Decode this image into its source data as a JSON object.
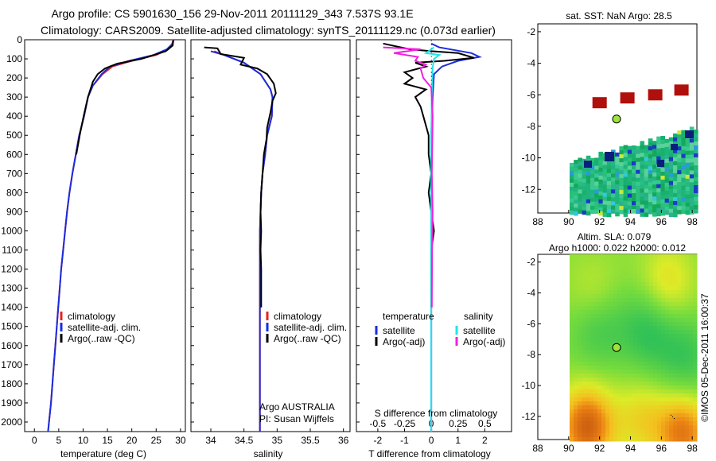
{
  "title_line1": "Argo profile: CS 5901630_156 29-Nov-2011 20111129_343 7.537S 93.1E",
  "title_line2": "Climatology: CARS2009. Satellite-adjusted climatology: synTS_20111129.nc (0.073d earlier)",
  "colors": {
    "climatology": "#e8231f",
    "satellite": "#1a2de0",
    "argo": "#000000",
    "sal_satellite": "#20e4ea",
    "sal_argo": "#ee22dd",
    "sst_box": "#b0100c",
    "argo_marker": "#9ee33a"
  },
  "chart_data": [
    {
      "type": "line",
      "id": "temperature",
      "xlabel": "temperature (deg C)",
      "ylabel": "",
      "xlim": [
        -2,
        31
      ],
      "ylim": [
        2050,
        0
      ],
      "xticks": [
        0,
        5,
        10,
        15,
        20,
        25,
        30
      ],
      "yticks": [
        0,
        100,
        200,
        300,
        400,
        500,
        600,
        700,
        800,
        900,
        1000,
        1100,
        1200,
        1300,
        1400,
        1500,
        1600,
        1700,
        1800,
        1900,
        2000
      ],
      "legend": [
        "climatology",
        "satellite-adj. clim.",
        "Argo(..raw -QC)"
      ],
      "series": [
        {
          "name": "climatology",
          "color_key": "climatology",
          "points": [
            [
              28.5,
              0
            ],
            [
              28.3,
              20
            ],
            [
              27.5,
              50
            ],
            [
              25,
              80
            ],
            [
              20,
              110
            ],
            [
              16,
              140
            ],
            [
              14,
              180
            ],
            [
              12,
              240
            ],
            [
              11,
              300
            ],
            [
              10.2,
              400
            ],
            [
              9.2,
              500
            ],
            [
              8.5,
              600
            ],
            [
              7.8,
              700
            ],
            [
              7.2,
              800
            ],
            [
              6.7,
              900
            ],
            [
              6.3,
              1000
            ],
            [
              5.9,
              1100
            ],
            [
              5.5,
              1200
            ],
            [
              5.2,
              1300
            ],
            [
              4.9,
              1400
            ],
            [
              4.6,
              1500
            ],
            [
              4.3,
              1600
            ],
            [
              4.0,
              1700
            ],
            [
              3.7,
              1800
            ],
            [
              3.4,
              1900
            ],
            [
              3.0,
              2000
            ],
            [
              2.8,
              2050
            ]
          ]
        },
        {
          "name": "satellite-adj. clim.",
          "color_key": "satellite",
          "points": [
            [
              28.6,
              0
            ],
            [
              28.4,
              20
            ],
            [
              27.2,
              50
            ],
            [
              24.5,
              80
            ],
            [
              19.5,
              110
            ],
            [
              15.5,
              140
            ],
            [
              13.8,
              180
            ],
            [
              12,
              240
            ],
            [
              11,
              300
            ],
            [
              10.2,
              400
            ],
            [
              9.2,
              500
            ],
            [
              8.5,
              600
            ],
            [
              7.8,
              700
            ],
            [
              7.2,
              800
            ],
            [
              6.7,
              900
            ],
            [
              6.3,
              1000
            ],
            [
              5.9,
              1100
            ],
            [
              5.5,
              1200
            ],
            [
              5.2,
              1300
            ],
            [
              4.9,
              1400
            ],
            [
              4.6,
              1500
            ],
            [
              4.3,
              1600
            ],
            [
              4.0,
              1700
            ],
            [
              3.7,
              1800
            ],
            [
              3.4,
              1900
            ],
            [
              3.0,
              2000
            ],
            [
              2.8,
              2050
            ]
          ]
        },
        {
          "name": "Argo(..raw -QC)",
          "color_key": "argo",
          "points": [
            [
              28.5,
              5
            ],
            [
              28.4,
              30
            ],
            [
              27,
              60
            ],
            [
              22,
              100
            ],
            [
              17,
              125
            ],
            [
              14.5,
              150
            ],
            [
              13,
              180
            ],
            [
              12,
              220
            ],
            [
              11,
              300
            ],
            [
              10.1,
              400
            ],
            [
              9.3,
              500
            ],
            [
              8.6,
              600
            ]
          ]
        }
      ]
    },
    {
      "type": "line",
      "id": "salinity",
      "xlabel": "salinity",
      "xlim": [
        33.7,
        36.1
      ],
      "ylim": [
        2050,
        0
      ],
      "xticks": [
        34,
        34.5,
        35,
        35.5,
        36
      ],
      "xticklabels": [
        "34",
        "34.5",
        "35",
        "35.5",
        "36"
      ],
      "legend": [
        "climatology",
        "satellite-adj. clim.",
        "Argo(..raw -QC)"
      ],
      "annotation_lines": [
        "Argo AUSTRALIA",
        "PI: Susan Wijffels"
      ],
      "series": [
        {
          "name": "climatology",
          "color_key": "climatology",
          "points": [
            [
              34.05,
              60
            ],
            [
              34.2,
              80
            ],
            [
              34.5,
              120
            ],
            [
              34.75,
              180
            ],
            [
              34.9,
              260
            ],
            [
              34.93,
              300
            ],
            [
              34.92,
              400
            ],
            [
              34.85,
              500
            ],
            [
              34.82,
              600
            ],
            [
              34.78,
              700
            ],
            [
              34.76,
              800
            ],
            [
              34.75,
              900
            ],
            [
              34.74,
              1000
            ],
            [
              34.74,
              1100
            ],
            [
              34.74,
              1200
            ],
            [
              34.74,
              1300
            ],
            [
              34.74,
              1400
            ],
            [
              34.74,
              1500
            ],
            [
              34.74,
              1600
            ],
            [
              34.74,
              1700
            ],
            [
              34.74,
              1800
            ],
            [
              34.74,
              1900
            ],
            [
              34.74,
              2000
            ],
            [
              34.74,
              2050
            ]
          ]
        },
        {
          "name": "satellite-adj. clim.",
          "color_key": "satellite",
          "points": [
            [
              34.0,
              60
            ],
            [
              34.2,
              80
            ],
            [
              34.5,
              120
            ],
            [
              34.75,
              180
            ],
            [
              34.9,
              260
            ],
            [
              34.93,
              300
            ],
            [
              34.92,
              400
            ],
            [
              34.85,
              500
            ],
            [
              34.82,
              600
            ],
            [
              34.78,
              700
            ],
            [
              34.76,
              800
            ],
            [
              34.75,
              900
            ],
            [
              34.74,
              1000
            ],
            [
              34.74,
              1100
            ],
            [
              34.74,
              1200
            ],
            [
              34.74,
              1300
            ],
            [
              34.74,
              1400
            ],
            [
              34.74,
              1500
            ],
            [
              34.74,
              1600
            ],
            [
              34.74,
              1700
            ],
            [
              34.74,
              1800
            ],
            [
              34.74,
              1900
            ],
            [
              34.74,
              2000
            ],
            [
              34.74,
              2050
            ]
          ]
        },
        {
          "name": "Argo(..raw -QC)",
          "color_key": "argo",
          "points": [
            [
              33.9,
              40
            ],
            [
              34.1,
              45
            ],
            [
              34.15,
              75
            ],
            [
              34.5,
              95
            ],
            [
              34.45,
              130
            ],
            [
              34.7,
              150
            ],
            [
              34.85,
              180
            ],
            [
              34.95,
              230
            ],
            [
              34.98,
              280
            ],
            [
              34.93,
              320
            ],
            [
              34.9,
              380
            ],
            [
              34.85,
              460
            ],
            [
              34.84,
              520
            ],
            [
              34.8,
              600
            ],
            [
              34.78,
              700
            ],
            [
              34.76,
              800
            ],
            [
              34.75,
              900
            ],
            [
              34.76,
              1000
            ],
            [
              34.75,
              1100
            ],
            [
              34.76,
              1200
            ],
            [
              34.76,
              1300
            ],
            [
              34.76,
              1400
            ]
          ]
        }
      ]
    },
    {
      "type": "line",
      "id": "difference",
      "xlabel": "T difference from climatology",
      "x2label": "S difference from climatology",
      "xlim": [
        -2.8,
        3
      ],
      "ylim": [
        2050,
        0
      ],
      "xticks": [
        -2,
        -1,
        0,
        1,
        2
      ],
      "x2ticks": [
        -0.5,
        -0.25,
        0,
        0.25,
        0.5
      ],
      "legend_left_title": "temperature",
      "legend_right_title": "salinity",
      "legend_left": [
        "satellite",
        "Argo(-adj)"
      ],
      "legend_right": [
        "satellite",
        "Argo(-adj)"
      ],
      "series": [
        {
          "name": "T satellite",
          "color_key": "satellite",
          "points": [
            [
              0,
              20
            ],
            [
              0.3,
              40
            ],
            [
              1.5,
              70
            ],
            [
              1.8,
              90
            ],
            [
              1,
              110
            ],
            [
              0.4,
              140
            ],
            [
              0.1,
              180
            ],
            [
              0.05,
              300
            ],
            [
              0,
              500
            ],
            [
              0,
              800
            ],
            [
              0,
              1200
            ],
            [
              0,
              1600
            ],
            [
              0,
              2050
            ]
          ]
        },
        {
          "name": "T Argo(-adj)",
          "color_key": "argo",
          "points": [
            [
              -1.8,
              20
            ],
            [
              -0.8,
              50
            ],
            [
              0,
              60
            ],
            [
              1,
              70
            ],
            [
              1.6,
              95
            ],
            [
              0.5,
              110
            ],
            [
              -0.6,
              120
            ],
            [
              -0.2,
              140
            ],
            [
              -1,
              170
            ],
            [
              -0.7,
              200
            ],
            [
              -1,
              230
            ],
            [
              -0.2,
              260
            ],
            [
              -0.6,
              300
            ],
            [
              -0.4,
              350
            ],
            [
              -0.3,
              400
            ],
            [
              -0.1,
              500
            ],
            [
              -0.1,
              600
            ],
            [
              0,
              700
            ],
            [
              -0.1,
              800
            ],
            [
              0,
              900
            ],
            [
              0.1,
              1000
            ],
            [
              0,
              1100
            ],
            [
              0,
              1200
            ],
            [
              0,
              1300
            ],
            [
              0,
              1400
            ]
          ]
        },
        {
          "name": "S satellite",
          "color_key": "sal_satellite",
          "points": [
            [
              0.1,
              40
            ],
            [
              -0.2,
              70
            ],
            [
              0.3,
              80
            ],
            [
              0.1,
              100
            ],
            [
              0.05,
              150
            ],
            [
              0.02,
              300
            ],
            [
              0,
              500
            ],
            [
              0,
              900
            ],
            [
              0,
              1300
            ],
            [
              0,
              1700
            ],
            [
              0,
              2050
            ]
          ]
        },
        {
          "name": "S Argo(-adj)",
          "color_key": "sal_argo",
          "points": [
            [
              -1.8,
              40
            ],
            [
              -0.4,
              50
            ],
            [
              -1.4,
              70
            ],
            [
              -0.5,
              90
            ],
            [
              -0.6,
              110
            ],
            [
              -0.2,
              130
            ],
            [
              -0.4,
              150
            ],
            [
              -0.3,
              200
            ],
            [
              0,
              250
            ],
            [
              0.05,
              400
            ],
            [
              0.02,
              700
            ],
            [
              0.05,
              900
            ],
            [
              0.03,
              1100
            ],
            [
              0.02,
              1400
            ]
          ]
        }
      ]
    },
    {
      "type": "heatmap",
      "id": "sst-map",
      "title": "sat. SST: NaN Argo: 28.5",
      "xlim": [
        88,
        98.3
      ],
      "ylim": [
        -13.5,
        -1.5
      ],
      "xticks": [
        88,
        90,
        92,
        94,
        96,
        98
      ],
      "yticks": [
        -2,
        -4,
        -6,
        -8,
        -10,
        -12
      ],
      "argo_position": [
        93.1,
        -7.537
      ],
      "sst_boxes": [
        [
          92,
          -6.5
        ],
        [
          93.8,
          -6.2
        ],
        [
          95.6,
          -6.0
        ],
        [
          97.3,
          -5.7
        ]
      ]
    },
    {
      "type": "heatmap",
      "id": "sla-map",
      "title_line1": "Altim. SLA: 0.079",
      "title_line2": "Argo h1000: 0.022 h2000: 0.012",
      "xlim": [
        88,
        98.3
      ],
      "ylim": [
        -13.5,
        -1.5
      ],
      "xticks": [
        88,
        90,
        92,
        94,
        96,
        98
      ],
      "yticks": [
        -2,
        -4,
        -6,
        -8,
        -10,
        -12
      ],
      "argo_position": [
        93.1,
        -7.537
      ],
      "argo_track": [
        [
          96.6,
          -11.9
        ],
        [
          96.9,
          -12.2
        ]
      ]
    }
  ],
  "footer_credit": "©IMOS 05-Dec-2011 16:00:37"
}
